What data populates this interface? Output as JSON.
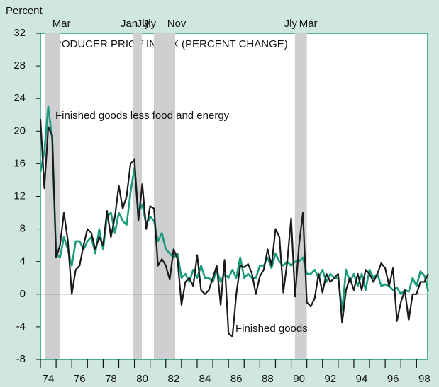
{
  "chart_data": {
    "type": "line",
    "title": "PRODUCER PRICE INDEX (PERCENT CHANGE)",
    "y_axis_label": "Percent",
    "x": [
      1974,
      1974.25,
      1974.5,
      1974.75,
      1975,
      1975.25,
      1975.5,
      1975.75,
      1976,
      1976.25,
      1976.5,
      1976.75,
      1977,
      1977.25,
      1977.5,
      1977.75,
      1978,
      1978.25,
      1978.5,
      1978.75,
      1979,
      1979.25,
      1979.5,
      1979.75,
      1980,
      1980.25,
      1980.5,
      1980.75,
      1981,
      1981.25,
      1981.5,
      1981.75,
      1982,
      1982.25,
      1982.5,
      1982.75,
      1983,
      1983.25,
      1983.5,
      1983.75,
      1984,
      1984.25,
      1984.5,
      1984.75,
      1985,
      1985.25,
      1985.5,
      1985.75,
      1986,
      1986.25,
      1986.5,
      1986.75,
      1987,
      1987.25,
      1987.5,
      1987.75,
      1988,
      1988.25,
      1988.5,
      1988.75,
      1989,
      1989.25,
      1989.5,
      1989.75,
      1990,
      1990.25,
      1990.5,
      1990.75,
      1991,
      1991.25,
      1991.5,
      1991.75,
      1992,
      1992.25,
      1992.5,
      1992.75,
      1993,
      1993.25,
      1993.5,
      1993.75,
      1994,
      1994.25,
      1994.5,
      1994.75,
      1995,
      1995.25,
      1995.5,
      1995.75,
      1996,
      1996.25,
      1996.5,
      1996.75,
      1997,
      1997.25,
      1997.5,
      1997.75,
      1998,
      1998.25,
      1998.5,
      1998.75
    ],
    "series": [
      {
        "name": "Finished goods",
        "color": "#1a1a1a",
        "values": [
          21.5,
          13,
          20.5,
          19.5,
          4.5,
          6,
          10,
          6.5,
          0,
          3,
          3.5,
          6,
          8,
          7.5,
          5.5,
          7,
          6,
          10.2,
          7,
          9.5,
          13.3,
          10.5,
          12,
          16,
          16.5,
          9,
          13.5,
          8,
          10.8,
          10.5,
          3.5,
          4.3,
          3.5,
          1.8,
          5.5,
          4.3,
          -1.3,
          1.5,
          2,
          1,
          4.8,
          0.5,
          0,
          0.5,
          2,
          3.5,
          -1.3,
          4.2,
          -4.8,
          -5.2,
          0,
          3.5,
          3.3,
          3.7,
          2.5,
          0,
          2.2,
          3,
          5.5,
          3.5,
          8,
          7,
          0.2,
          4,
          9.3,
          -0.3,
          6,
          10,
          -1,
          -1.5,
          -0.5,
          2.5,
          0.2,
          2.5,
          1.5,
          2,
          2.5,
          -3.5,
          0.5,
          2,
          0.5,
          2.5,
          0.5,
          3,
          2.5,
          1.5,
          2.5,
          3.8,
          3.2,
          1,
          3.2,
          -3.3,
          -1,
          0.5,
          -3.2,
          0,
          0,
          1.5,
          1.5,
          2.5
        ]
      },
      {
        "name": "Finished goods less food and energy",
        "color": "#1a9b7c",
        "values": [
          15,
          17.5,
          23,
          19,
          5,
          4.5,
          7,
          5.5,
          3.5,
          6.5,
          6.5,
          5.5,
          6.5,
          7,
          5,
          8,
          5.5,
          9.5,
          10,
          7.5,
          10,
          9,
          8.5,
          12.5,
          15.5,
          10,
          11,
          8.5,
          9.5,
          9,
          6.5,
          7.5,
          5.5,
          5,
          4.5,
          5,
          2,
          2.5,
          1.5,
          3,
          2,
          3.5,
          2,
          2,
          1.5,
          3,
          1.5,
          2.5,
          2,
          3,
          2,
          4.5,
          2,
          2.5,
          2,
          2,
          3.5,
          3.5,
          4.5,
          3.2,
          5,
          4,
          3.5,
          4,
          3.5,
          4,
          4,
          4.5,
          2.5,
          2.5,
          3,
          2,
          3,
          1.5,
          2.5,
          2,
          2,
          -2,
          3,
          1.5,
          2.5,
          1,
          2.5,
          0.5,
          3,
          2,
          2.5,
          1,
          1.2,
          1,
          0.5,
          0.8,
          0,
          0.5,
          0.3,
          2,
          1,
          2.8,
          2.3,
          0.3
        ]
      }
    ],
    "xlim": [
      1974,
      1998.8
    ],
    "ylim": [
      -8,
      32
    ],
    "yticks": [
      -8,
      -4,
      0,
      4,
      8,
      12,
      16,
      20,
      24,
      28,
      32
    ],
    "xticks": [
      {
        "value": 1974,
        "label": "74"
      },
      {
        "value": 1976,
        "label": "76"
      },
      {
        "value": 1978,
        "label": "78"
      },
      {
        "value": 1980,
        "label": "80"
      },
      {
        "value": 1982,
        "label": "82"
      },
      {
        "value": 1984,
        "label": "84"
      },
      {
        "value": 1986,
        "label": "86"
      },
      {
        "value": 1988,
        "label": "88"
      },
      {
        "value": 1990,
        "label": "90"
      },
      {
        "value": 1992,
        "label": "92"
      },
      {
        "value": 1994,
        "label": "94"
      },
      {
        "value": 1996,
        "label": "96"
      },
      {
        "value": 1998,
        "label": "98"
      }
    ],
    "xminor_ticks": [
      1975,
      1977,
      1979,
      1981,
      1983,
      1985,
      1987,
      1989,
      1991,
      1993,
      1995,
      1997
    ],
    "recessions": [
      {
        "start": 1974.3,
        "end": 1975.25,
        "end_label": "Mar"
      },
      {
        "start": 1979.93,
        "end": 1980.47,
        "start_label": "Jan",
        "end_label": "Jly"
      },
      {
        "start": 1981.24,
        "end": 1982.6,
        "start_label": "Jly",
        "end_label": "Nov"
      },
      {
        "start": 1990.24,
        "end": 1991.0,
        "start_label": "Jly",
        "end_label": "Mar"
      }
    ]
  }
}
